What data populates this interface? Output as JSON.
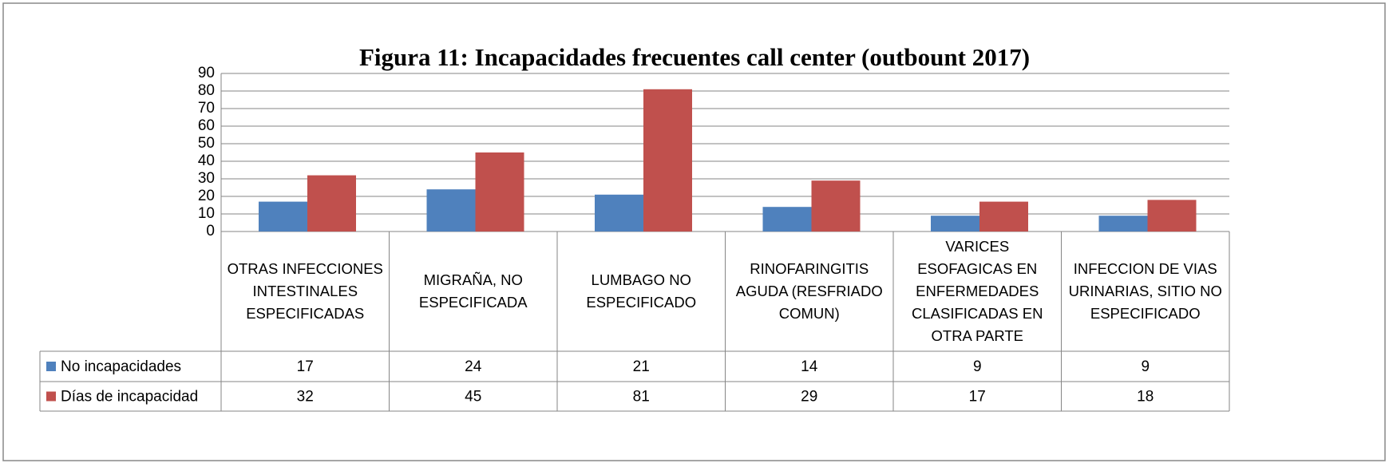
{
  "chart_data": {
    "type": "bar",
    "title": "Figura 11: Incapacidades frecuentes call center (outbount 2017)",
    "categories": [
      "OTRAS INFECCIONES INTESTINALES ESPECIFICADAS",
      "MIGRAÑA, NO ESPECIFICADA",
      "LUMBAGO NO ESPECIFICADO",
      "RINOFARINGITIS AGUDA (RESFRIADO COMUN)",
      "VARICES ESOFAGICAS EN ENFERMEDADES CLASIFICADAS EN OTRA PARTE",
      "INFECCION DE VIAS URINARIAS, SITIO NO ESPECIFICADO"
    ],
    "series": [
      {
        "name": "No incapacidades",
        "color": "#4f81bd",
        "values": [
          17,
          24,
          21,
          14,
          9,
          9
        ]
      },
      {
        "name": "Días de incapacidad",
        "color": "#c0504d",
        "values": [
          32,
          45,
          81,
          29,
          17,
          18
        ]
      }
    ],
    "ylim": [
      0,
      90
    ],
    "yticks": [
      0,
      10,
      20,
      30,
      40,
      50,
      60,
      70,
      80,
      90
    ],
    "grid": true,
    "legend": "table"
  }
}
